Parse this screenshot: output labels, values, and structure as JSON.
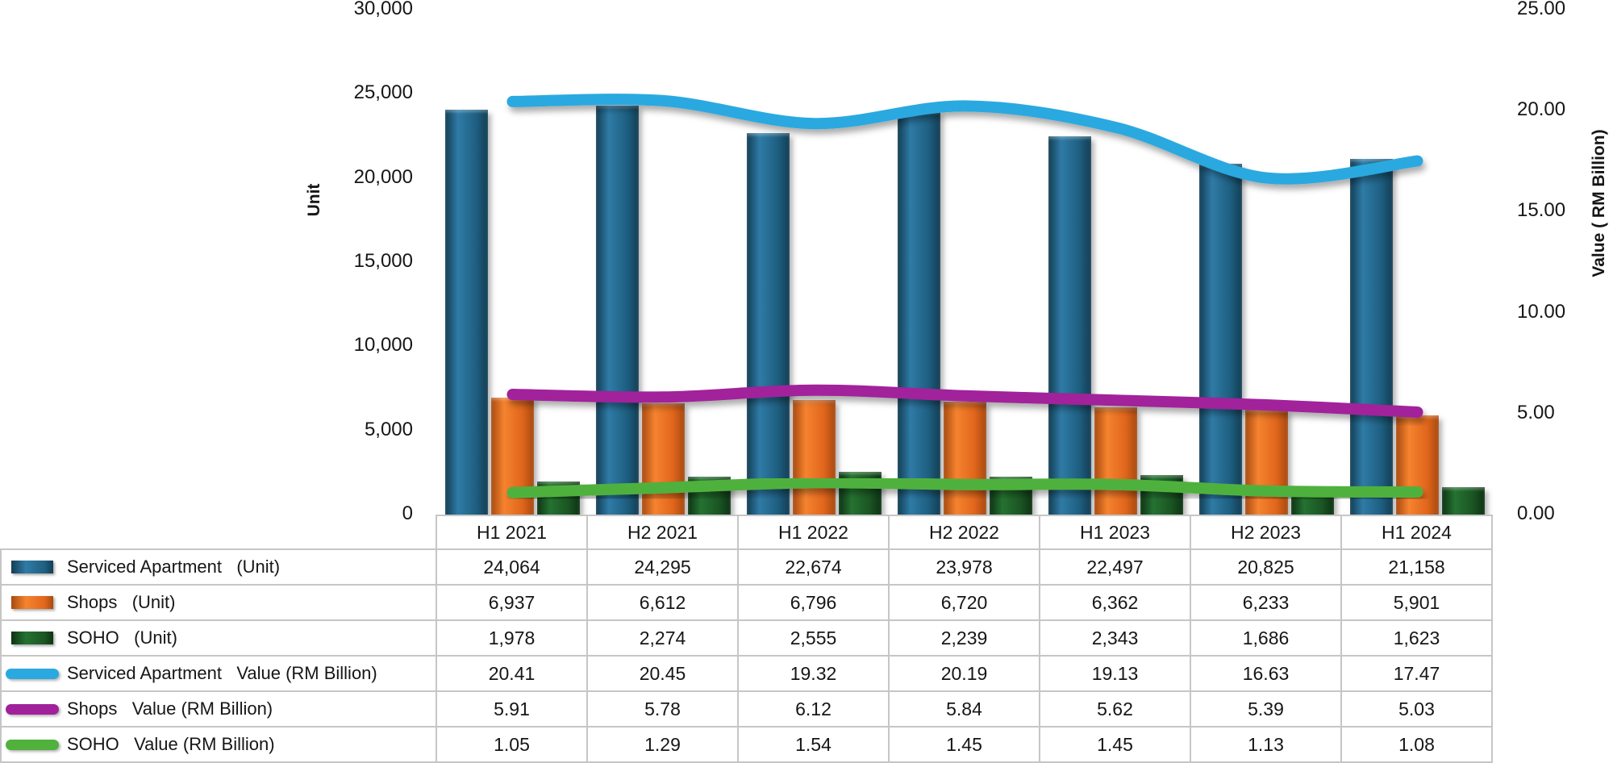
{
  "chart_data": {
    "type": "combo_bar_line",
    "title": "",
    "categories": [
      "H1 2021",
      "H2 2021",
      "H1 2022",
      "H2 2022",
      "H1 2023",
      "H2 2023",
      "H1 2024"
    ],
    "left_axis": {
      "title": "Unit",
      "min": 0,
      "max": 30000,
      "ticks": [
        {
          "label": "0",
          "value": 0
        },
        {
          "label": "5,000",
          "value": 5000
        },
        {
          "label": "10,000",
          "value": 10000
        },
        {
          "label": "15,000",
          "value": 15000
        },
        {
          "label": "20,000",
          "value": 20000
        },
        {
          "label": "25,000",
          "value": 25000
        },
        {
          "label": "30,000",
          "value": 30000
        }
      ]
    },
    "right_axis": {
      "title": "Value ( RM Billion)",
      "min": 0,
      "max": 25,
      "ticks": [
        {
          "label": "0.00",
          "value": 0
        },
        {
          "label": "5.00",
          "value": 5
        },
        {
          "label": "10.00",
          "value": 10
        },
        {
          "label": "15.00",
          "value": 15
        },
        {
          "label": "20.00",
          "value": 20
        },
        {
          "label": "25.00",
          "value": 25
        }
      ]
    },
    "legend_position": "table-left",
    "grid": false,
    "series": [
      {
        "id": "serviced-apartment-unit",
        "name": "Serviced Apartment   (Unit)",
        "kind": "bar",
        "axis": "left",
        "color": "#1E5F81",
        "color_light": "#2F7BA6",
        "color_dark": "#133E54",
        "values": [
          24064,
          24295,
          22674,
          23978,
          22497,
          20825,
          21158
        ],
        "display": [
          "24,064",
          "24,295",
          "22,674",
          "23,978",
          "22,497",
          "20,825",
          "21,158"
        ]
      },
      {
        "id": "shops-unit",
        "name": "Shops   (Unit)",
        "kind": "bar",
        "axis": "left",
        "color": "#E1661C",
        "color_light": "#F5832F",
        "color_dark": "#A84A10",
        "values": [
          6937,
          6612,
          6796,
          6720,
          6362,
          6233,
          5901
        ],
        "display": [
          "6,937",
          "6,612",
          "6,796",
          "6,720",
          "6,362",
          "6,233",
          "5,901"
        ]
      },
      {
        "id": "soho-unit",
        "name": "SOHO   (Unit)",
        "kind": "bar",
        "axis": "left",
        "color": "#1B5523",
        "color_light": "#257231",
        "color_dark": "#0D3314",
        "values": [
          1978,
          2274,
          2555,
          2239,
          2343,
          1686,
          1623
        ],
        "display": [
          "1,978",
          "2,274",
          "2,555",
          "2,239",
          "2,343",
          "1,686",
          "1,623"
        ]
      },
      {
        "id": "serviced-apartment-value",
        "name": "Serviced Apartment   Value (RM Billion)",
        "kind": "line",
        "axis": "right",
        "color": "#2AA9E0",
        "values": [
          20.41,
          20.45,
          19.32,
          20.19,
          19.13,
          16.63,
          17.47
        ],
        "display": [
          "20.41",
          "20.45",
          "19.32",
          "20.19",
          "19.13",
          "16.63",
          "17.47"
        ]
      },
      {
        "id": "shops-value",
        "name": "Shops   Value (RM Billion)",
        "kind": "line",
        "axis": "right",
        "color": "#A1219B",
        "values": [
          5.91,
          5.78,
          6.12,
          5.84,
          5.62,
          5.39,
          5.03
        ],
        "display": [
          "5.91",
          "5.78",
          "6.12",
          "5.84",
          "5.62",
          "5.39",
          "5.03"
        ]
      },
      {
        "id": "soho-value",
        "name": "SOHO   Value (RM Billion)",
        "kind": "line",
        "axis": "right",
        "color": "#50B13C",
        "values": [
          1.05,
          1.29,
          1.54,
          1.45,
          1.45,
          1.13,
          1.08
        ],
        "display": [
          "1.05",
          "1.29",
          "1.54",
          "1.45",
          "1.45",
          "1.13",
          "1.08"
        ]
      }
    ]
  }
}
